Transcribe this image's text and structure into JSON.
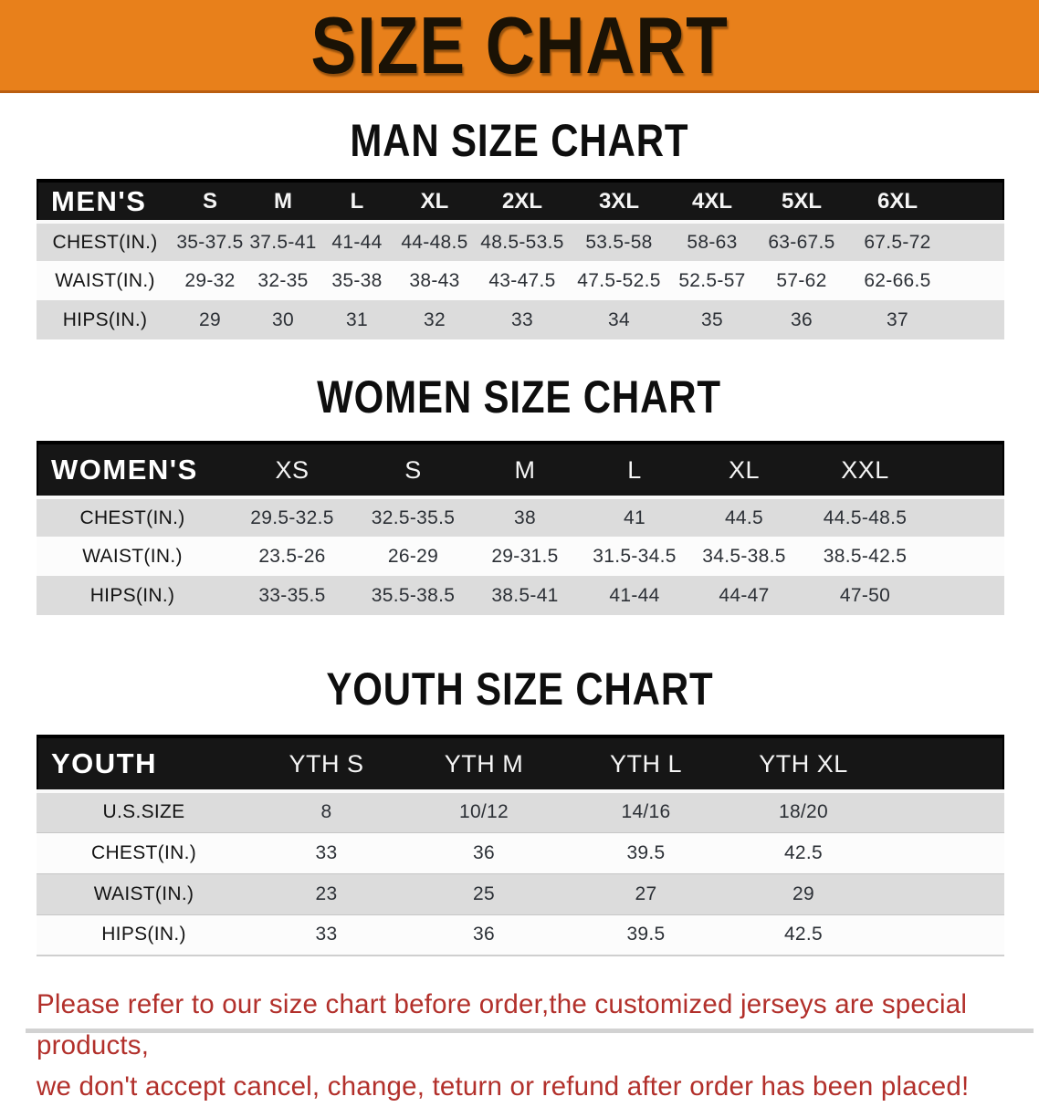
{
  "banner": {
    "title": "SIZE CHART"
  },
  "sections": {
    "men": {
      "heading": "MAN SIZE CHART",
      "table": {
        "label": "MEN'S",
        "sizes": [
          "S",
          "M",
          "L",
          "XL",
          "2XL",
          "3XL",
          "4XL",
          "5XL",
          "6XL"
        ],
        "rows": [
          {
            "label": "CHEST(IN.)",
            "values": [
              "35-37.5",
              "37.5-41",
              "41-44",
              "44-48.5",
              "48.5-53.5",
              "53.5-58",
              "58-63",
              "63-67.5",
              "67.5-72"
            ]
          },
          {
            "label": "WAIST(IN.)",
            "values": [
              "29-32",
              "32-35",
              "35-38",
              "38-43",
              "43-47.5",
              "47.5-52.5",
              "52.5-57",
              "57-62",
              "62-66.5"
            ]
          },
          {
            "label": "HIPS(IN.)",
            "values": [
              "29",
              "30",
              "31",
              "32",
              "33",
              "34",
              "35",
              "36",
              "37"
            ]
          }
        ]
      }
    },
    "women": {
      "heading": "WOMEN SIZE CHART",
      "table": {
        "label": "WOMEN'S",
        "sizes": [
          "XS",
          "S",
          "M",
          "L",
          "XL",
          "XXL"
        ],
        "rows": [
          {
            "label": "CHEST(IN.)",
            "values": [
              "29.5-32.5",
              "32.5-35.5",
              "38",
              "41",
              "44.5",
              "44.5-48.5"
            ]
          },
          {
            "label": "WAIST(IN.)",
            "values": [
              "23.5-26",
              "26-29",
              "29-31.5",
              "31.5-34.5",
              "34.5-38.5",
              "38.5-42.5"
            ]
          },
          {
            "label": "HIPS(IN.)",
            "values": [
              "33-35.5",
              "35.5-38.5",
              "38.5-41",
              "41-44",
              "44-47",
              "47-50"
            ]
          }
        ]
      }
    },
    "youth": {
      "heading": "YOUTH SIZE CHART",
      "table": {
        "label": "YOUTH",
        "sizes": [
          "YTH S",
          "YTH M",
          "YTH L",
          "YTH XL"
        ],
        "rows": [
          {
            "label": "U.S.SIZE",
            "values": [
              "8",
              "10/12",
              "14/16",
              "18/20"
            ]
          },
          {
            "label": "CHEST(IN.)",
            "values": [
              "33",
              "36",
              "39.5",
              "42.5"
            ]
          },
          {
            "label": "WAIST(IN.)",
            "values": [
              "23",
              "25",
              "27",
              "29"
            ]
          },
          {
            "label": "HIPS(IN.)",
            "values": [
              "33",
              "36",
              "39.5",
              "42.5"
            ]
          }
        ]
      }
    }
  },
  "disclaimer": {
    "line1": "Please refer to our size chart before order,the customized jerseys are special products,",
    "line2": "we don't accept cancel, change, teturn or refund after order has been placed!"
  },
  "colors": {
    "banner_orange": "#E8801B",
    "banner_edge": "#BA5E10",
    "header_black": "#161616",
    "row_gray": "#DCDCDC",
    "row_white": "#FCFCFC",
    "disclaimer_red": "#B2302B"
  }
}
